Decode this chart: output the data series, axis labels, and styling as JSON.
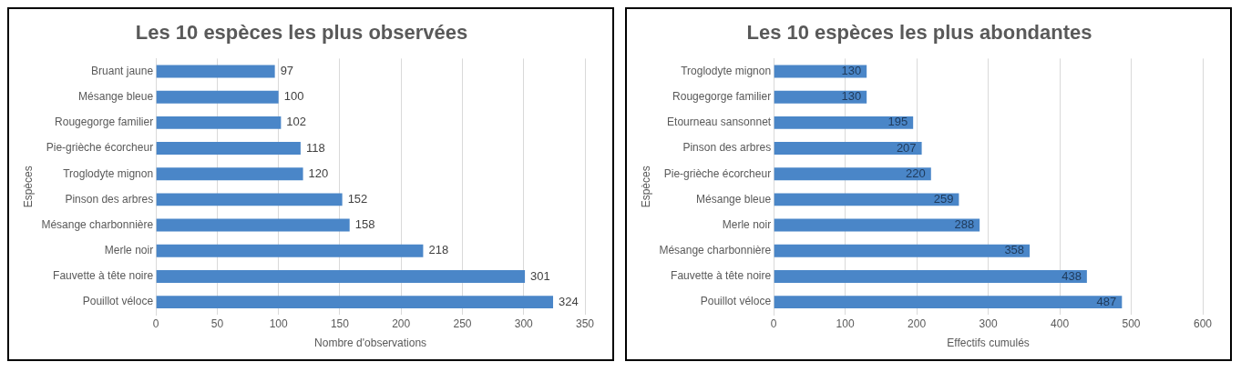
{
  "chart_data": [
    {
      "type": "bar",
      "orientation": "horizontal",
      "title": "Les 10 espèces les plus observées",
      "xlabel": "Nombre d'observations",
      "ylabel": "Espèces",
      "categories": [
        "Bruant jaune",
        "Mésange bleue",
        "Rougegorge familier",
        "Pie-grièche écorcheur",
        "Troglodyte mignon",
        "Pinson des arbres",
        "Mésange charbonnière",
        "Merle noir",
        "Fauvette à tête noire",
        "Pouillot véloce"
      ],
      "values": [
        97,
        100,
        102,
        118,
        120,
        152,
        158,
        218,
        301,
        324
      ],
      "color": "#4a86c8",
      "xlim": [
        0,
        350
      ],
      "xticks": [
        0,
        50,
        100,
        150,
        200,
        250,
        300,
        350
      ],
      "grid": "x",
      "data_labels": true,
      "legend": false
    },
    {
      "type": "bar",
      "orientation": "horizontal",
      "title": "Les 10 espèces les plus abondantes",
      "xlabel": "Effectifs cumulés",
      "ylabel": "Espèces",
      "categories": [
        "Troglodyte mignon",
        "Rougegorge familier",
        "Etourneau sansonnet",
        "Pinson des arbres",
        "Pie-grièche écorcheur",
        "Mésange bleue",
        "Merle noir",
        "Mésange charbonnière",
        "Fauvette à tête noire",
        "Pouillot véloce"
      ],
      "values": [
        130,
        130,
        195,
        207,
        220,
        259,
        288,
        358,
        438,
        487
      ],
      "color": "#4a86c8",
      "xlim": [
        0,
        600
      ],
      "xticks": [
        0,
        100,
        200,
        300,
        400,
        500,
        600
      ],
      "grid": "x",
      "data_labels": true,
      "legend": false
    }
  ]
}
